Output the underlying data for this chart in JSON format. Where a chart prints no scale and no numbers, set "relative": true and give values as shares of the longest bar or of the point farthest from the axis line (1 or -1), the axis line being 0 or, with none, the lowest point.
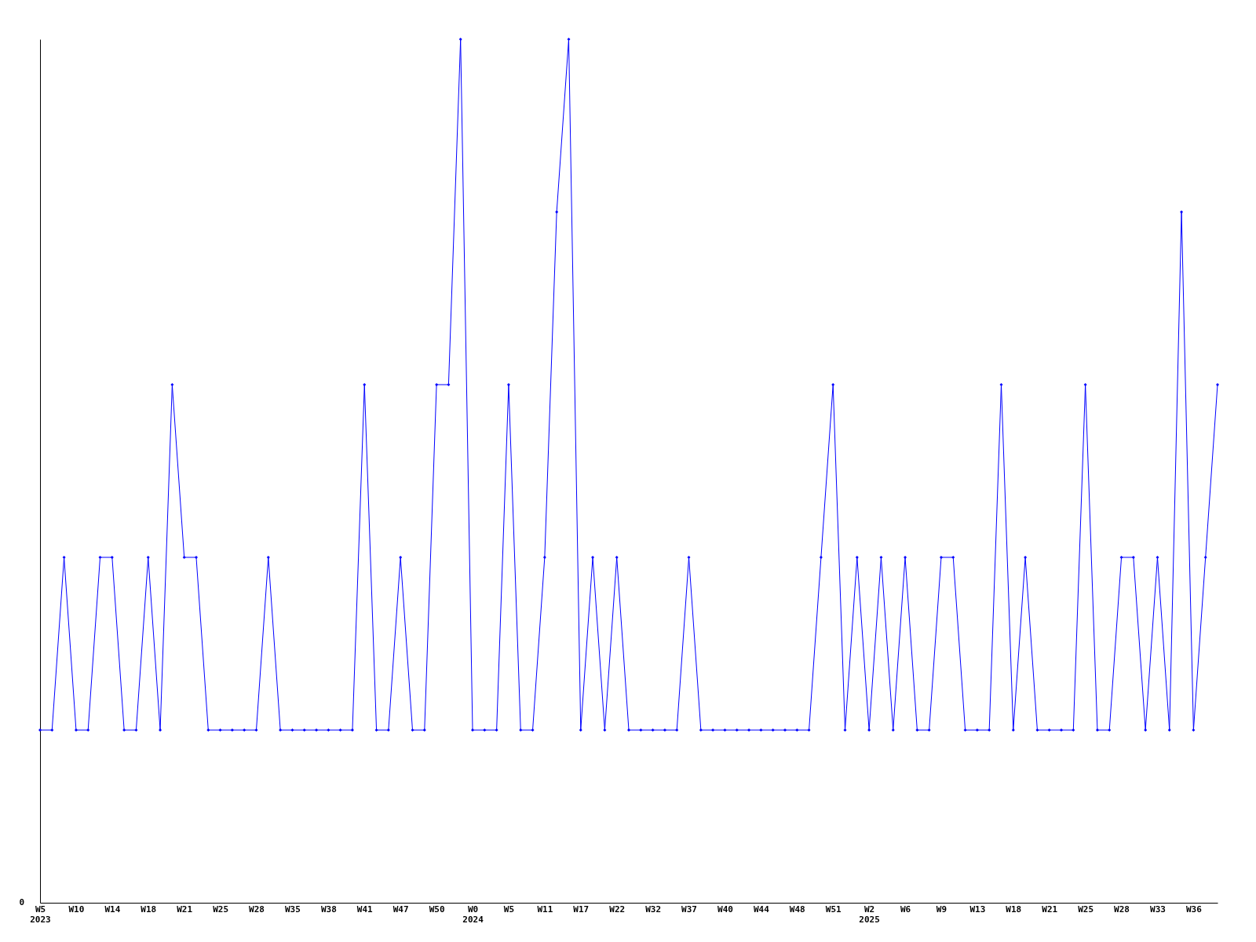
{
  "chart_data": {
    "type": "line",
    "relative": true,
    "grid": false,
    "marker": "diamond",
    "line_style": "solid",
    "annotations": [
      "0"
    ],
    "categories": [
      "W5\n2023",
      null,
      null,
      "W10",
      null,
      null,
      "W14",
      null,
      null,
      "W18",
      null,
      null,
      "W21",
      null,
      null,
      "W25",
      null,
      null,
      "W28",
      null,
      null,
      "W35",
      null,
      null,
      "W38",
      null,
      null,
      "W41",
      null,
      null,
      "W47",
      null,
      null,
      "W50",
      null,
      null,
      "W0\n2024",
      null,
      null,
      "W5",
      null,
      null,
      "W11",
      null,
      null,
      "W17",
      null,
      null,
      "W22",
      null,
      null,
      "W32",
      null,
      null,
      "W37",
      null,
      null,
      "W40",
      null,
      null,
      "W44",
      null,
      null,
      "W48",
      null,
      null,
      "W51",
      null,
      null,
      "W2\n2025",
      null,
      null,
      "W6",
      null,
      null,
      "W9",
      null,
      null,
      "W13",
      null,
      null,
      "W18",
      null,
      null,
      "W21",
      null,
      null,
      "W25",
      null,
      null,
      "W28",
      null,
      null,
      "W33",
      null,
      null,
      "W36",
      null,
      null
    ],
    "series": [
      {
        "color": "#0000ff",
        "values": [
          0.2,
          0.2,
          0.4,
          0.2,
          0.2,
          0.4,
          0.4,
          0.2,
          0.2,
          0.4,
          0.2,
          0.6,
          0.4,
          0.4,
          0.2,
          0.2,
          0.2,
          0.2,
          0.2,
          0.4,
          0.2,
          0.2,
          0.2,
          0.2,
          0.2,
          0.2,
          0.2,
          0.6,
          0.2,
          0.2,
          0.4,
          0.2,
          0.2,
          0.6,
          0.6,
          1,
          0.2,
          0.2,
          0.2,
          0.6,
          0.2,
          0.2,
          0.4,
          0.8,
          1,
          0.2,
          0.4,
          0.2,
          0.4,
          0.2,
          0.2,
          0.2,
          0.2,
          0.2,
          0.4,
          0.2,
          0.2,
          0.2,
          0.2,
          0.2,
          0.2,
          0.2,
          0.2,
          0.2,
          0.2,
          0.4,
          0.6,
          0.2,
          0.4,
          0.2,
          0.4,
          0.2,
          0.4,
          0.2,
          0.2,
          0.4,
          0.4,
          0.2,
          0.2,
          0.2,
          0.6,
          0.2,
          0.4,
          0.2,
          0.2,
          0.2,
          0.2,
          0.6,
          0.2,
          0.2,
          0.4,
          0.4,
          0.2,
          0.4,
          0.2,
          0.8,
          0.2,
          0.4,
          0.6
        ]
      }
    ]
  }
}
